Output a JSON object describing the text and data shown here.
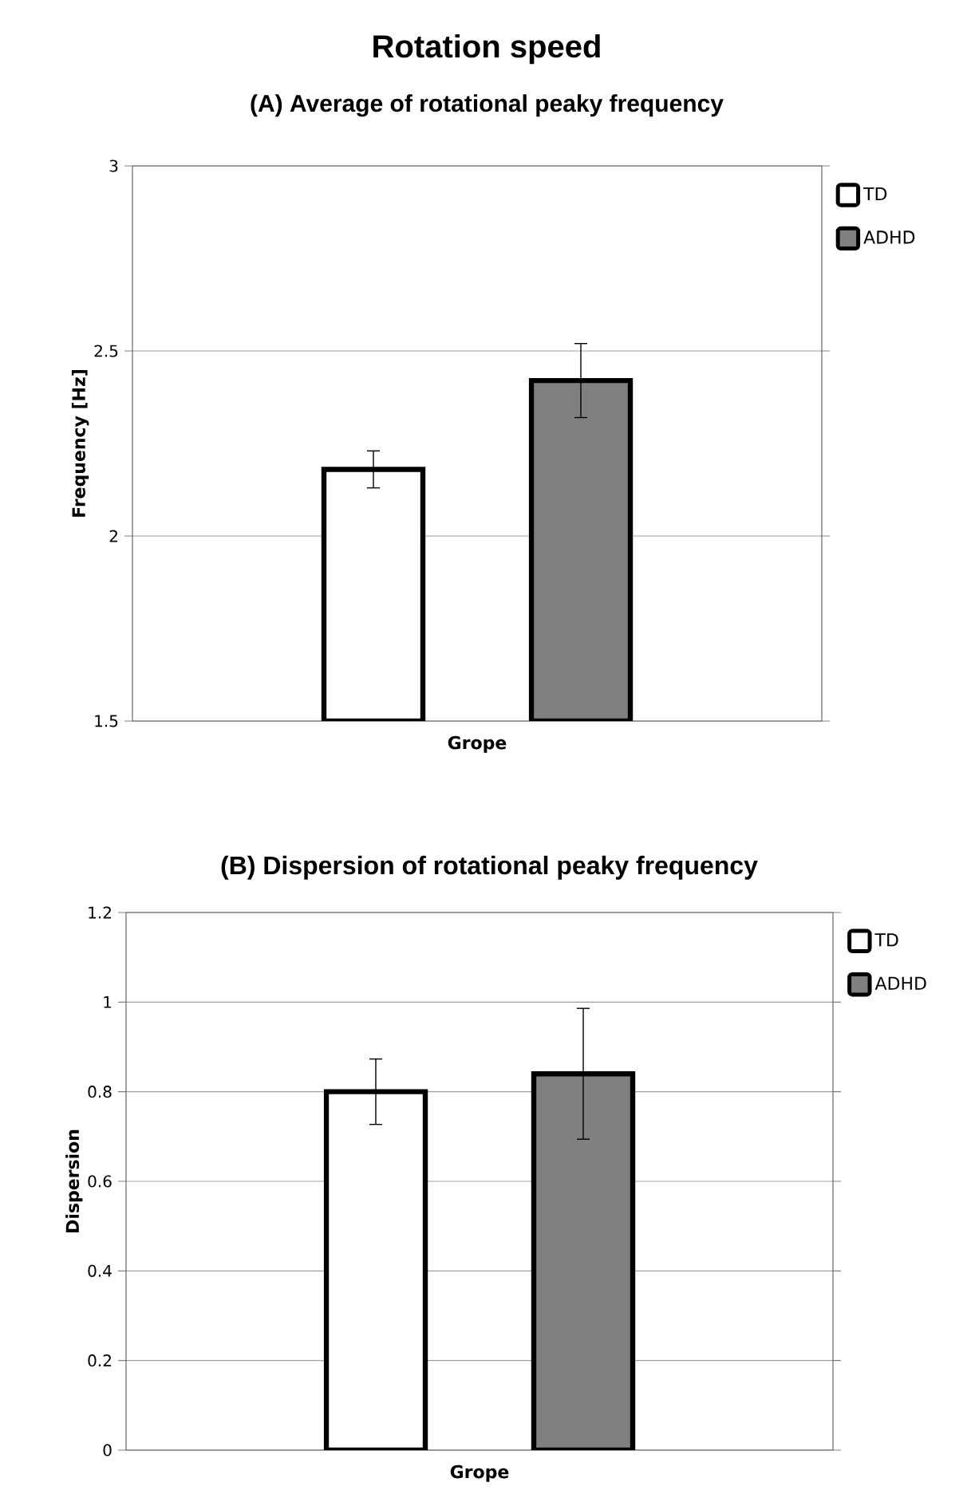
{
  "chart_data": [
    {
      "type": "bar",
      "title": "Rotation speed",
      "subtitle": "(A) Average of rotational peaky frequency",
      "xlabel": "Grope",
      "ylabel": "Frequency  [Hz]",
      "categories": [
        null
      ],
      "series": [
        {
          "name": "TD",
          "color": "#ffffff",
          "values": [
            2.18
          ],
          "errors": [
            0.05
          ]
        },
        {
          "name": "ADHD",
          "color": "#808080",
          "values": [
            2.42
          ],
          "errors": [
            0.1
          ]
        }
      ],
      "ylim": [
        1.5,
        3
      ],
      "yticks": [
        1.5,
        2,
        2.5,
        3
      ],
      "grid": "y",
      "legend": "top right"
    },
    {
      "type": "bar",
      "title": "(B) Dispersion of rotational peaky frequency",
      "xlabel": "Grope",
      "ylabel": "Dispersion",
      "categories": [
        null
      ],
      "series": [
        {
          "name": "TD",
          "color": "#ffffff",
          "values": [
            0.8
          ],
          "errors": [
            0.073
          ]
        },
        {
          "name": "ADHD",
          "color": "#808080",
          "values": [
            0.84
          ],
          "errors": [
            0.146
          ]
        }
      ],
      "ylim": [
        0,
        1.2
      ],
      "yticks": [
        0,
        0.2,
        0.4,
        0.6,
        0.8,
        1,
        1.2
      ],
      "grid": "y",
      "legend": "top right"
    }
  ]
}
